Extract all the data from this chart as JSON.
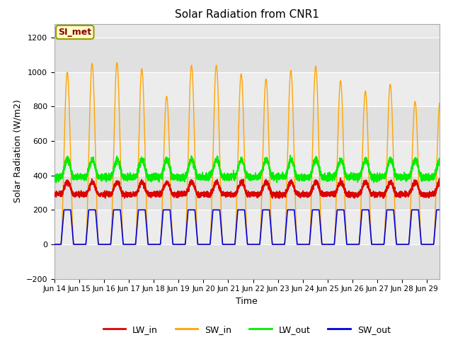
{
  "title": "Solar Radiation from CNR1",
  "xlabel": "Time",
  "ylabel": "Solar Radiation (W/m2)",
  "ylim": [
    -200,
    1280
  ],
  "yticks": [
    -200,
    0,
    200,
    400,
    600,
    800,
    1000,
    1200
  ],
  "x_tick_labels": [
    "Jun 14",
    "Jun 15",
    "Jun 16",
    "Jun 17",
    "Jun 18",
    "Jun 19",
    "Jun 20",
    "Jun 21",
    "Jun 22",
    "Jun 23",
    "Jun 24",
    "Jun 25",
    "Jun 26",
    "Jun 27",
    "Jun 28",
    "Jun 29"
  ],
  "SI_met_label": "SI_met",
  "background_color": "#ffffff",
  "plot_bg_color": "#e8e8e8",
  "line_colors": {
    "LW_in": "#dd0000",
    "SW_in": "#ffa500",
    "LW_out": "#00ee00",
    "SW_out": "#0000dd"
  },
  "band_colors": [
    "#e0e0e0",
    "#ececec"
  ],
  "grid_color": "#ffffff",
  "SW_in_peaks": [
    1000,
    1050,
    1055,
    1020,
    860,
    1040,
    1040,
    990,
    960,
    1010,
    1035,
    950,
    890,
    930,
    830,
    830
  ],
  "total_days": 15.5,
  "samples_per_day": 288
}
